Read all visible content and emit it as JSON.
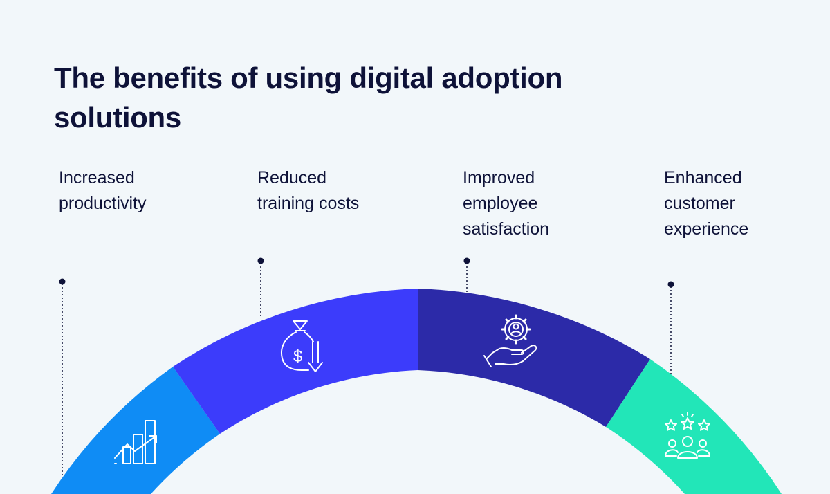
{
  "title": "The benefits of using digital adoption solutions",
  "benefits": [
    {
      "label": "Increased\nproductivity",
      "color": "#0f8cf5",
      "icon": "growth-chart-icon"
    },
    {
      "label": "Reduced\ntraining costs",
      "color": "#3c3cfb",
      "icon": "money-bag-down-icon"
    },
    {
      "label": "Improved\nemployee\nsatisfaction",
      "color": "#2c2aa8",
      "icon": "hand-gear-person-icon"
    },
    {
      "label": "Enhanced\ncustomer\nexperience",
      "color": "#22e6b8",
      "icon": "rated-customers-icon"
    }
  ]
}
